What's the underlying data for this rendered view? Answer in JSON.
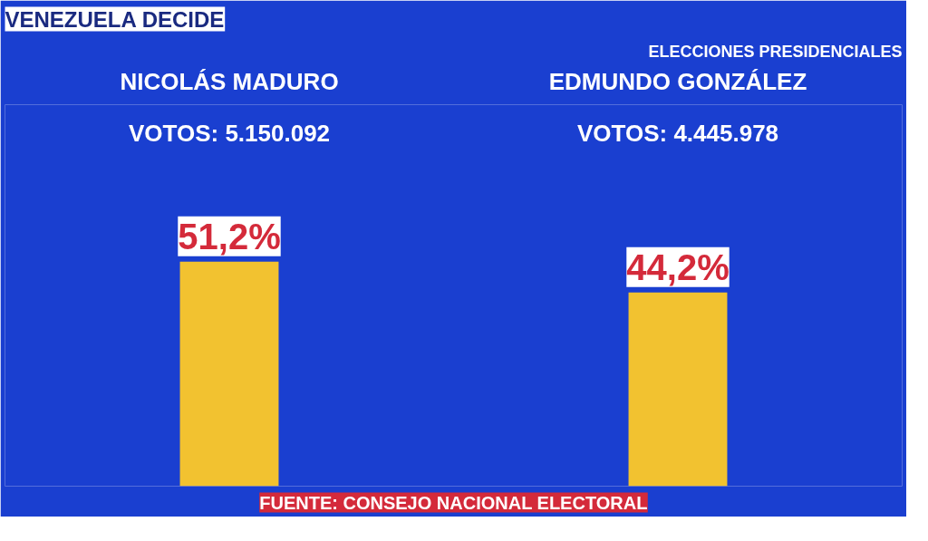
{
  "chart_data": {
    "type": "bar",
    "title": "VENEZUELA DECIDE",
    "subtitle": "ELECCIONES PRESIDENCIALES",
    "categories": [
      "NICOLÁS MADURO",
      "EDMUNDO GONZÁLEZ"
    ],
    "values": [
      51.2,
      44.2
    ],
    "value_labels": [
      "51,2%",
      "44,2%"
    ],
    "color": "#f2c230",
    "annotations": [
      "VOTOS: 5.150.092",
      "VOTOS: 4.445.978",
      "FUENTE: CONSEJO NACIONAL ELECTORAL"
    ],
    "grid": false
  }
}
